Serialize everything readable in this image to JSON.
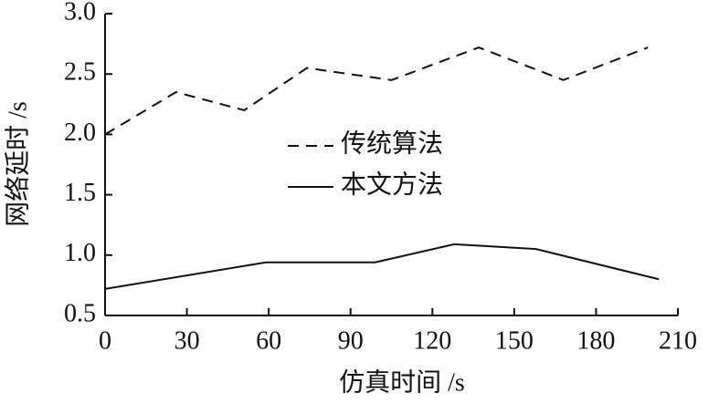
{
  "chart_data": {
    "type": "line",
    "x_label": "仿真时间 /s",
    "y_label": "网络延时 /s",
    "xlim": [
      0,
      210
    ],
    "xticks": [
      0,
      30,
      60,
      90,
      120,
      150,
      180,
      210
    ],
    "ylim": [
      0.5,
      3.0
    ],
    "yticks": [
      {
        "value": 0.5,
        "label": "0.5"
      },
      {
        "value": 1.0,
        "label": "1.0"
      },
      1.5,
      {
        "value": 2.0,
        "label": "2.0"
      },
      2.5,
      {
        "value": 3.0,
        "label": "3.0"
      }
    ],
    "series": [
      {
        "name": "传统算法",
        "color": "#111111",
        "dash": true,
        "x": [
          0,
          26,
          51,
          74,
          105,
          137,
          168,
          199
        ],
        "values": [
          2.0,
          2.35,
          2.2,
          2.55,
          2.45,
          2.72,
          2.45,
          2.72
        ]
      },
      {
        "name": "本文方法",
        "color": "#111111",
        "dash": false,
        "x": [
          0,
          59,
          99,
          128,
          158,
          203
        ],
        "values": [
          0.72,
          0.94,
          0.94,
          1.09,
          1.05,
          0.8
        ]
      }
    ]
  }
}
